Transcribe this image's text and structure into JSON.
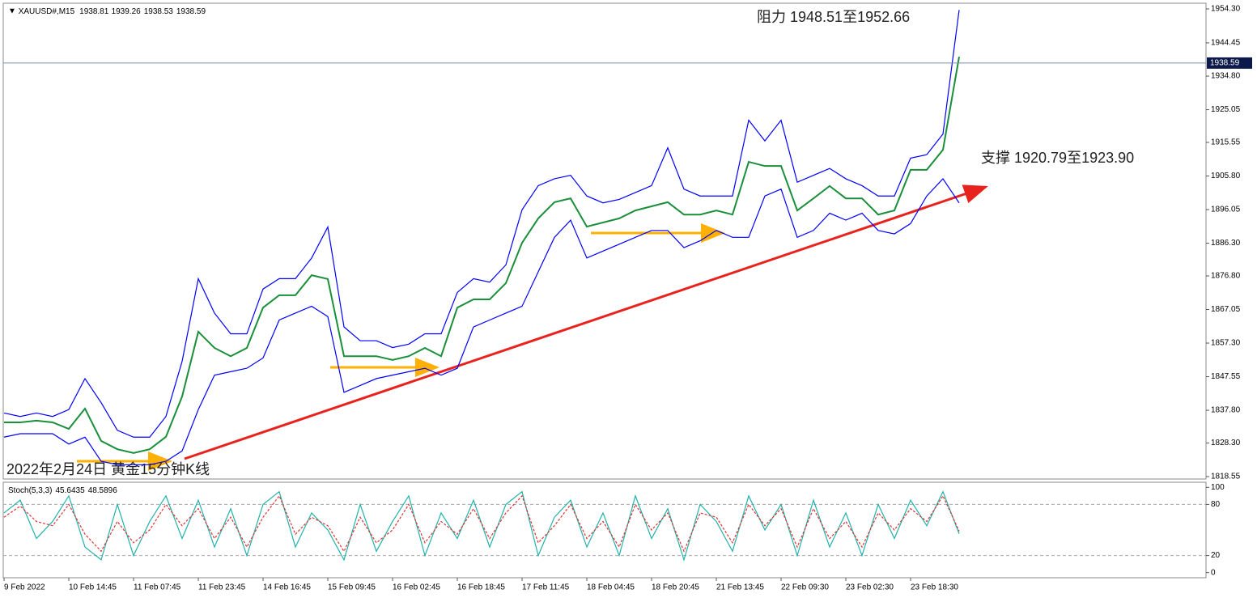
{
  "chart_data": [
    {
      "type": "line",
      "title": "2022年2月24日 黄金15分钟K线",
      "symbol": "XAUUSD#,M15",
      "ohlc": [
        1938.81,
        1939.26,
        1938.53,
        1938.59
      ],
      "current_price": 1938.59,
      "annotations": [
        "阻力 1948.51至1952.66",
        "支撑 1920.79至1923.90"
      ],
      "ylim": [
        1817.85,
        1955.95
      ],
      "yticks": [
        {
          "value": 1954.3,
          "label": "1954.30"
        },
        1944.45,
        {
          "value": 1934.8,
          "label": "1934.80"
        },
        1925.05,
        1915.55,
        {
          "value": 1905.8,
          "label": "1905.80"
        },
        1896.05,
        {
          "value": 1886.3,
          "label": "1886.30"
        },
        {
          "value": 1876.8,
          "label": "1876.80"
        },
        1867.05,
        {
          "value": 1857.3,
          "label": "1857.30"
        },
        1847.55,
        {
          "value": 1837.8,
          "label": "1837.80"
        },
        {
          "value": 1828.3,
          "label": "1828.30"
        },
        1818.55
      ],
      "series": [
        {
          "color": "#1a8f3a",
          "values": [
            1834.3,
            1834.3,
            1834.8,
            1834.3,
            1832.4,
            1838.3,
            1828.9,
            1826.5,
            1825.4,
            1826.5,
            1830.1,
            1841.8,
            1860.6,
            1855.9,
            1853.5,
            1855.9,
            1867.6,
            1871.2,
            1871.2,
            1877.0,
            1875.9,
            1853.5,
            1853.5,
            1853.5,
            1852.4,
            1853.5,
            1855.9,
            1853.5,
            1867.6,
            1870.0,
            1870.0,
            1874.7,
            1886.4,
            1893.5,
            1898.2,
            1899.3,
            1891.1,
            1892.3,
            1893.5,
            1895.8,
            1897.0,
            1898.2,
            1894.6,
            1894.6,
            1895.8,
            1894.6,
            1909.9,
            1908.7,
            1908.7,
            1895.8,
            1899.3,
            1902.9,
            1899.3,
            1899.3,
            1894.6,
            1895.8,
            1907.6,
            1907.6,
            1913.4,
            1940.4
          ]
        },
        {
          "color": "#0000ff",
          "values": [
            1837,
            1836,
            1837,
            1836,
            1838,
            1847,
            1840,
            1832,
            1830,
            1830,
            1836,
            1852,
            1876,
            1866,
            1860,
            1860,
            1873,
            1876,
            1876,
            1882,
            1891,
            1862,
            1858,
            1858,
            1856,
            1857,
            1860,
            1860,
            1872,
            1876,
            1875,
            1880,
            1896,
            1903,
            1905,
            1906,
            1900,
            1898,
            1899,
            1901,
            1903,
            1914,
            1902,
            1900,
            1900,
            1900,
            1922,
            1916,
            1922,
            1904,
            1906,
            1908,
            1905,
            1903,
            1900,
            1900,
            1911,
            1912,
            1918,
            1954
          ]
        },
        {
          "color": "#0000ff",
          "values": [
            1830,
            1831,
            1831,
            1831,
            1828,
            1830,
            1823,
            1822,
            1822,
            1822,
            1823,
            1826,
            1838,
            1848,
            1849,
            1850,
            1853,
            1864,
            1866,
            1868,
            1865,
            1843,
            1845,
            1847,
            1848,
            1849,
            1850,
            1848,
            1850,
            1862,
            1864,
            1866,
            1868,
            1878,
            1888,
            1893,
            1882,
            1884,
            1886,
            1888,
            1890,
            1890,
            1885,
            1887,
            1890,
            1888,
            1888,
            1900,
            1902,
            1888,
            1890,
            1895,
            1893,
            1895,
            1890,
            1889,
            1892,
            1900,
            1905,
            1898
          ]
        }
      ]
    },
    {
      "type": "line",
      "title": "Stoch(5,3,3)",
      "readout": [
        45.6435,
        48.5896
      ],
      "ylim": [
        -6,
        106
      ],
      "yticks": [
        0,
        20,
        80,
        100
      ],
      "categories": [
        "9 Feb 2022",
        null,
        null,
        null,
        "10 Feb 14:45",
        null,
        null,
        null,
        "11 Feb 07:45",
        null,
        null,
        null,
        "11 Feb 23:45",
        null,
        null,
        null,
        "14 Feb 16:45",
        null,
        null,
        null,
        "15 Feb 09:45",
        null,
        null,
        null,
        "16 Feb 02:45",
        null,
        null,
        null,
        "16 Feb 18:45",
        null,
        null,
        null,
        "17 Feb 11:45",
        null,
        null,
        null,
        "18 Feb 04:45",
        null,
        null,
        null,
        "18 Feb 20:45",
        null,
        null,
        null,
        "21 Feb 13:45",
        null,
        null,
        null,
        "22 Feb 09:30",
        null,
        null,
        null,
        "23 Feb 02:30",
        null,
        null,
        null,
        "23 Feb 18:30",
        null,
        null,
        null
      ],
      "series": [
        {
          "color": "#20b2aa",
          "values": [
            70,
            85,
            40,
            60,
            90,
            30,
            15,
            80,
            20,
            60,
            90,
            40,
            85,
            30,
            75,
            20,
            80,
            95,
            30,
            70,
            50,
            15,
            80,
            25,
            60,
            90,
            20,
            70,
            40,
            85,
            30,
            80,
            95,
            20,
            65,
            85,
            30,
            70,
            20,
            90,
            40,
            75,
            15,
            80,
            60,
            25,
            90,
            50,
            80,
            20,
            85,
            30,
            70,
            20,
            80,
            40,
            85,
            55,
            95,
            45.6
          ]
        },
        {
          "color": "#e03030",
          "dashed": true,
          "values": [
            65,
            78,
            60,
            55,
            80,
            45,
            25,
            60,
            35,
            50,
            80,
            55,
            75,
            40,
            65,
            30,
            65,
            90,
            45,
            65,
            55,
            25,
            65,
            35,
            50,
            80,
            35,
            60,
            45,
            75,
            40,
            70,
            90,
            35,
            55,
            80,
            40,
            60,
            30,
            80,
            50,
            70,
            25,
            70,
            65,
            35,
            80,
            55,
            75,
            30,
            75,
            40,
            60,
            30,
            70,
            50,
            75,
            60,
            90,
            48.6
          ]
        }
      ]
    }
  ]
}
